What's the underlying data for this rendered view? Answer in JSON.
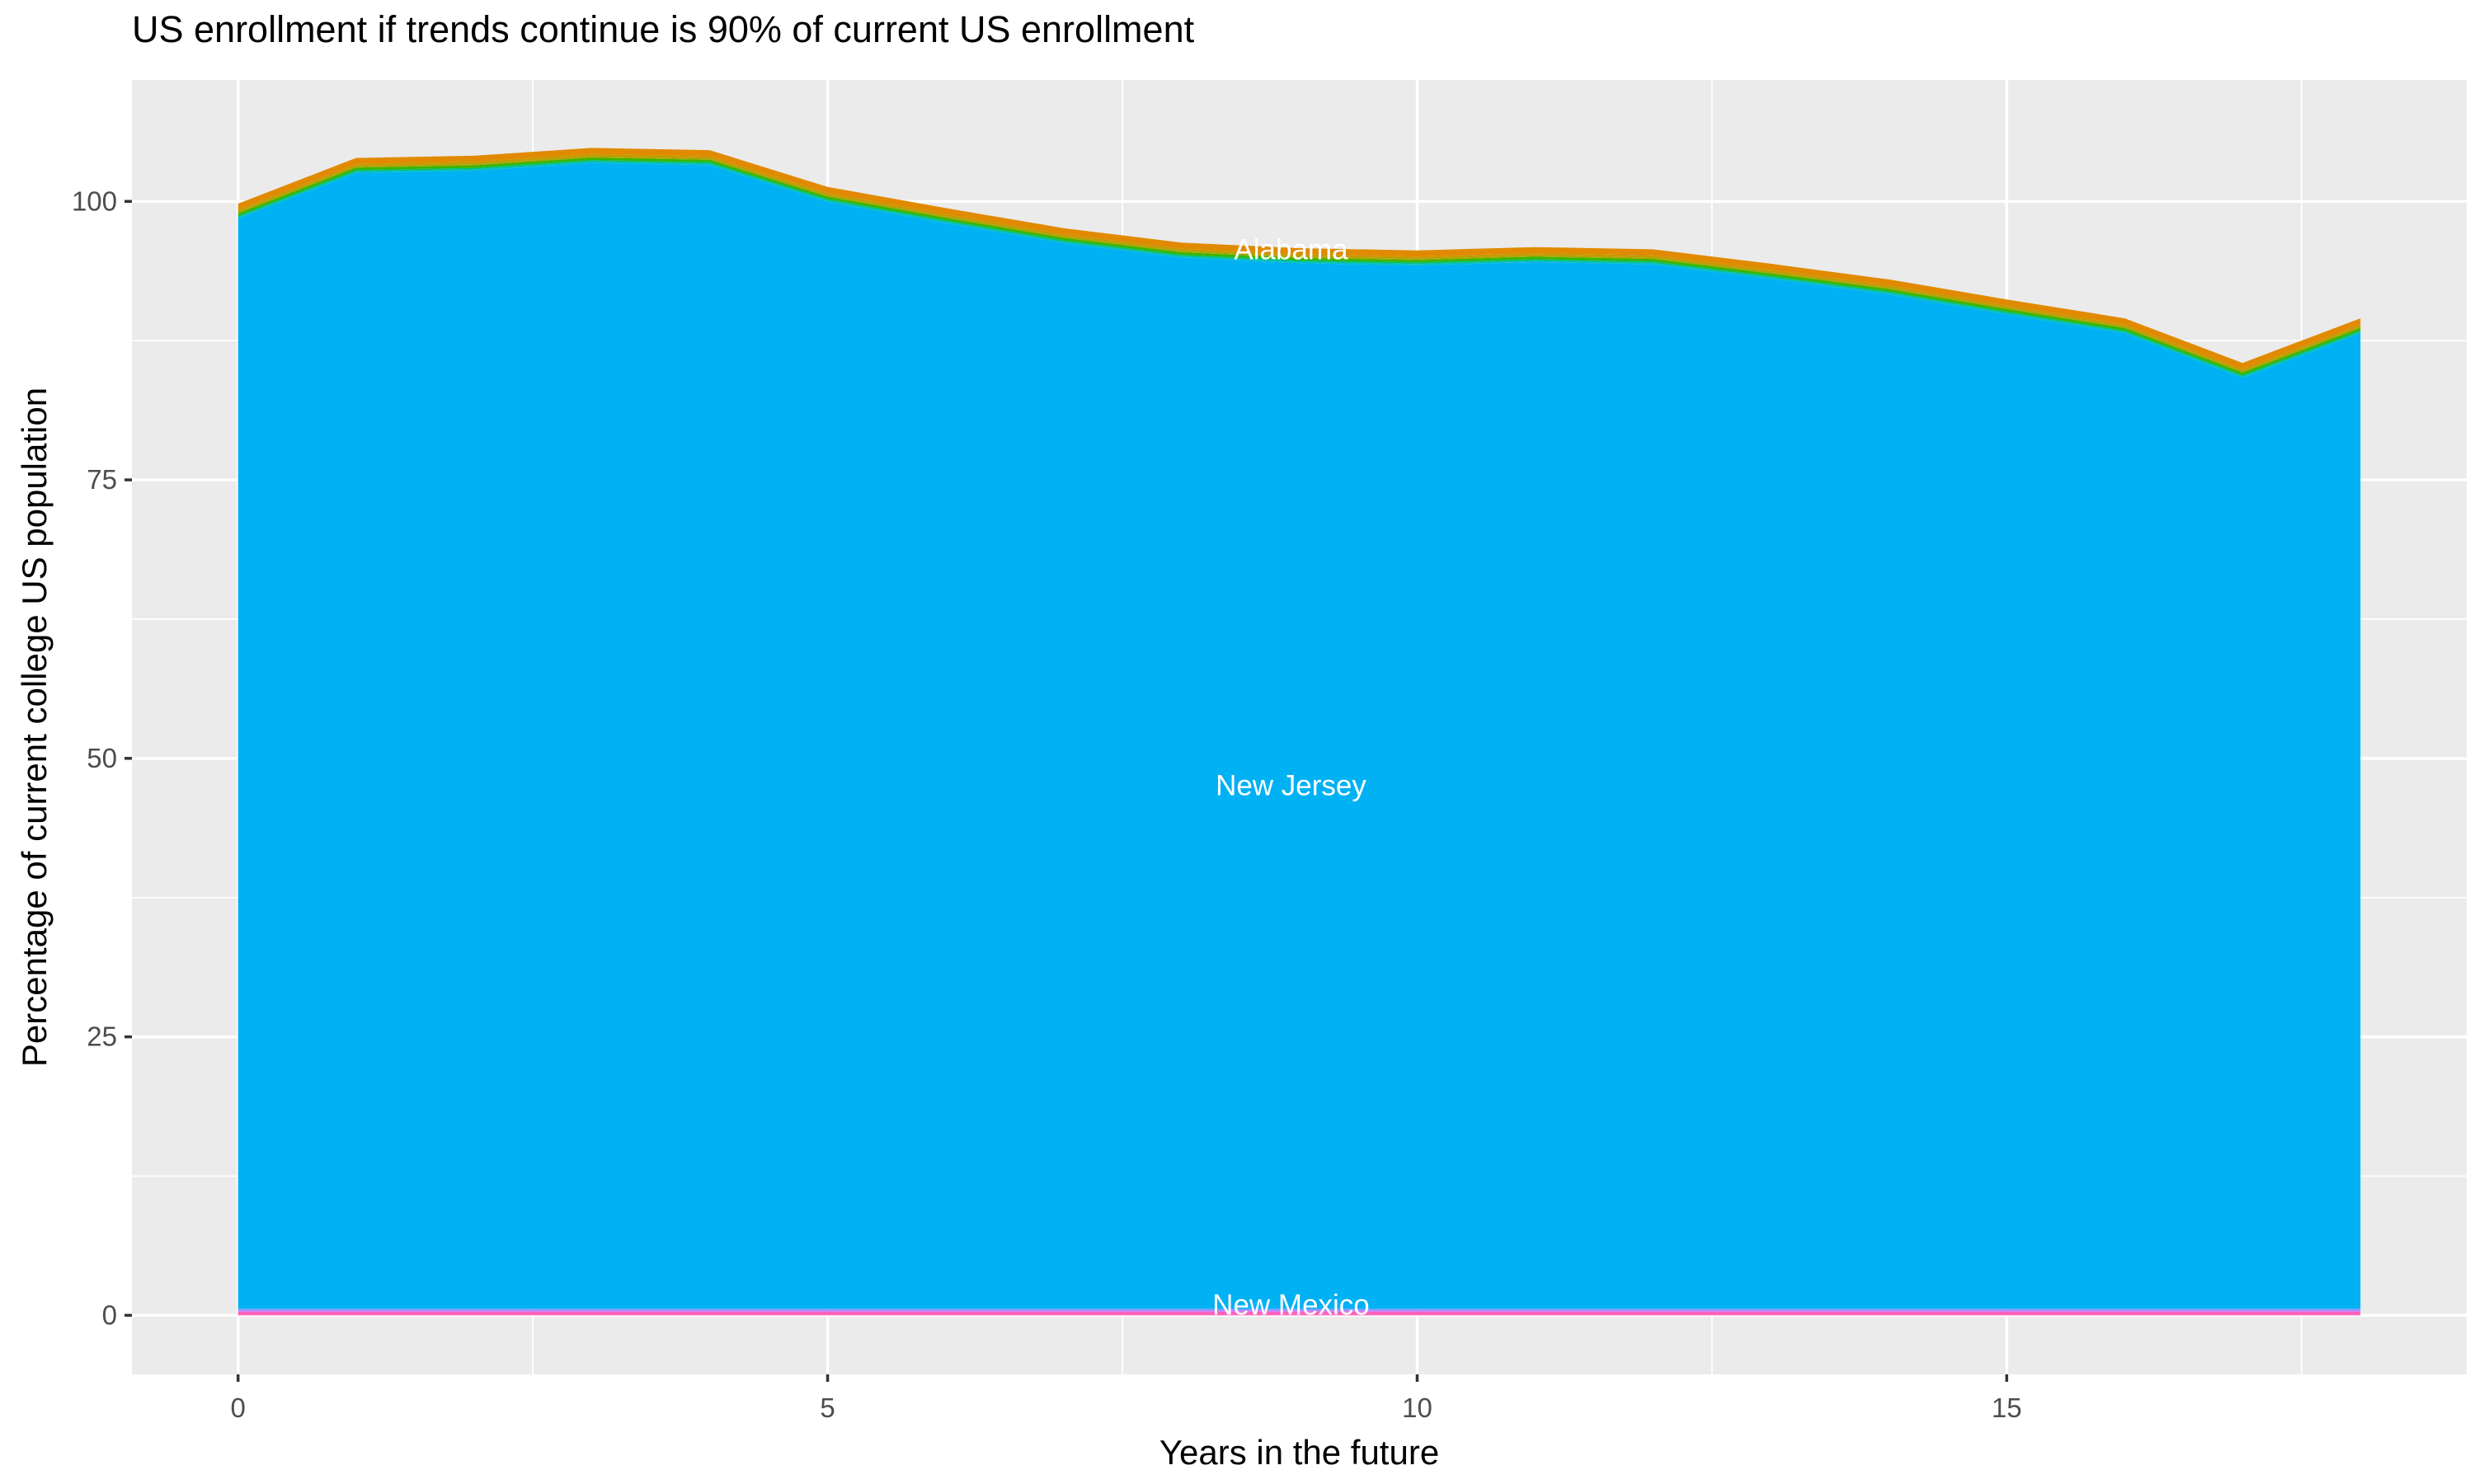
{
  "title": "US enrollment if trends continue is 90% of current US enrollment",
  "chart_data": {
    "type": "area",
    "stacked": true,
    "title": "US enrollment if trends continue is 90% of current US enrollment",
    "xlabel": "Years in the future",
    "ylabel": "Percentage of current college US population",
    "x": [
      0,
      1,
      2,
      3,
      4,
      5,
      6,
      7,
      8,
      9,
      10,
      11,
      12,
      13,
      14,
      15,
      16,
      17,
      18
    ],
    "stack_total": [
      99.8,
      103.9,
      104.1,
      104.8,
      104.6,
      101.3,
      99.4,
      97.6,
      96.3,
      95.8,
      95.6,
      95.9,
      95.7,
      94.4,
      93.0,
      91.2,
      89.5,
      85.5,
      89.5
    ],
    "series": [
      {
        "label": "New Mexico",
        "color": "#FF62BC",
        "thickness": 0.35
      },
      {
        "label": "",
        "color": "#B983FF",
        "thickness": 0.13
      },
      {
        "label": "",
        "color": "#619CFF",
        "thickness": 0.12
      },
      {
        "label": "New Jersey",
        "color": "#00B1F3",
        "values": [
          97.85,
          101.95,
          102.15,
          102.85,
          102.65,
          99.35,
          97.45,
          95.65,
          94.35,
          93.85,
          93.65,
          93.95,
          93.75,
          92.45,
          91.05,
          89.25,
          87.55,
          83.55,
          87.55
        ]
      },
      {
        "label": "",
        "color": "#00BFC4",
        "thickness": 0.13
      },
      {
        "label": "",
        "color": "#00BF7D",
        "thickness": 0.13
      },
      {
        "label": "",
        "color": "#39B600",
        "thickness": 0.22
      },
      {
        "label": "",
        "color": "#A3A500",
        "thickness": 0.12
      },
      {
        "label": "",
        "color": "#C49A00",
        "thickness": 0.2
      },
      {
        "label": "Alabama",
        "color": "#E18A00",
        "thickness": 0.55
      }
    ],
    "area_labels": [
      {
        "text": "Alabama",
        "x": 8.93,
        "y": 95.7
      },
      {
        "text": "New Jersey",
        "x": 8.93,
        "y": 47.6
      },
      {
        "text": "New Mexico",
        "x": 8.93,
        "y": 0.95
      }
    ],
    "x_ticks": [
      0,
      5,
      10,
      15
    ],
    "x_tick_labels": [
      "0",
      "5",
      "10",
      "15"
    ],
    "x_minor_ticks": [
      2.5,
      7.5,
      12.5,
      17.5
    ],
    "y_ticks": [
      0,
      25,
      50,
      75,
      100
    ],
    "y_tick_labels": [
      "0",
      "25",
      "50",
      "75",
      "100"
    ],
    "y_minor_ticks": [
      12.5,
      37.5,
      62.5,
      87.5
    ],
    "xlim": [
      -0.9,
      18.9
    ],
    "ylim": [
      -5.3,
      110.9
    ],
    "grid": "on",
    "legend": "none",
    "colors": {
      "panel_bg": "#EBEBEB",
      "grid": "#FFFFFF",
      "tick_label": "#4D4D4D",
      "tick_mark": "#333333",
      "title": "#000000",
      "area_label_text": "#FFFFFF"
    }
  }
}
